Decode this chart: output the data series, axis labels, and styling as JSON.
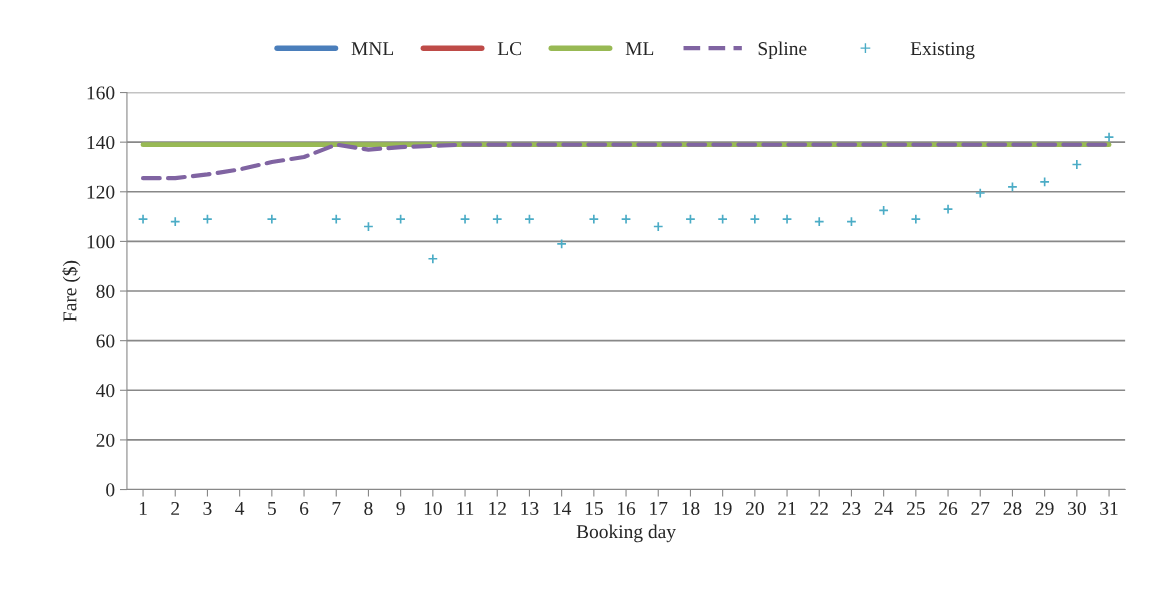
{
  "chart_data": {
    "type": "line",
    "xlabel": "Booking day",
    "ylabel": "Fare ($)",
    "categories": [
      "1",
      "2",
      "3",
      "4",
      "5",
      "6",
      "7",
      "8",
      "9",
      "10",
      "11",
      "12",
      "13",
      "14",
      "15",
      "16",
      "17",
      "18",
      "19",
      "20",
      "21",
      "22",
      "23",
      "24",
      "25",
      "26",
      "27",
      "28",
      "29",
      "30",
      "31"
    ],
    "ylim": [
      0,
      160
    ],
    "yticks": [
      0,
      20,
      40,
      60,
      80,
      100,
      120,
      140,
      160
    ],
    "grid": "y",
    "legend": "top",
    "series": [
      {
        "name": "MNL",
        "color": "#4a7ebb",
        "line_style": "solid",
        "values": [
          null,
          null,
          null,
          null,
          null,
          null,
          null,
          null,
          null,
          null,
          null,
          null,
          null,
          null,
          null,
          null,
          null,
          null,
          null,
          null,
          null,
          null,
          null,
          null,
          null,
          null,
          null,
          null,
          null,
          null,
          null
        ]
      },
      {
        "name": "LC",
        "color": "#be4b48",
        "line_style": "solid",
        "values": [
          null,
          null,
          null,
          null,
          null,
          null,
          null,
          null,
          null,
          null,
          null,
          null,
          null,
          null,
          null,
          null,
          null,
          null,
          null,
          null,
          null,
          null,
          null,
          null,
          null,
          null,
          null,
          null,
          null,
          null,
          null
        ]
      },
      {
        "name": "ML",
        "color": "#98b954",
        "line_style": "solid",
        "values": [
          139,
          139,
          139,
          139,
          139,
          139,
          139,
          139,
          139,
          139,
          139,
          139,
          139,
          139,
          139,
          139,
          139,
          139,
          139,
          139,
          139,
          139,
          139,
          139,
          139,
          139,
          139,
          139,
          139,
          139,
          139
        ]
      },
      {
        "name": "Spline",
        "color": "#8064a2",
        "line_style": "dashed",
        "values": [
          125.5,
          125.5,
          127,
          129,
          132,
          134,
          139,
          137,
          138,
          138.5,
          139,
          139,
          139,
          139,
          139,
          139,
          139,
          139,
          139,
          139,
          139,
          139,
          139,
          139,
          139,
          139,
          139,
          139,
          139,
          139,
          139
        ]
      },
      {
        "name": "Existing",
        "color": "#4bacc6",
        "type": "scatter",
        "marker": "cross",
        "values": [
          109,
          108,
          109,
          null,
          109,
          null,
          109,
          106,
          109,
          93,
          109,
          109,
          109,
          99,
          109,
          109,
          106,
          109,
          109,
          109,
          109,
          108,
          108,
          112.5,
          109,
          113,
          119.5,
          122,
          124,
          131,
          142
        ]
      }
    ]
  }
}
